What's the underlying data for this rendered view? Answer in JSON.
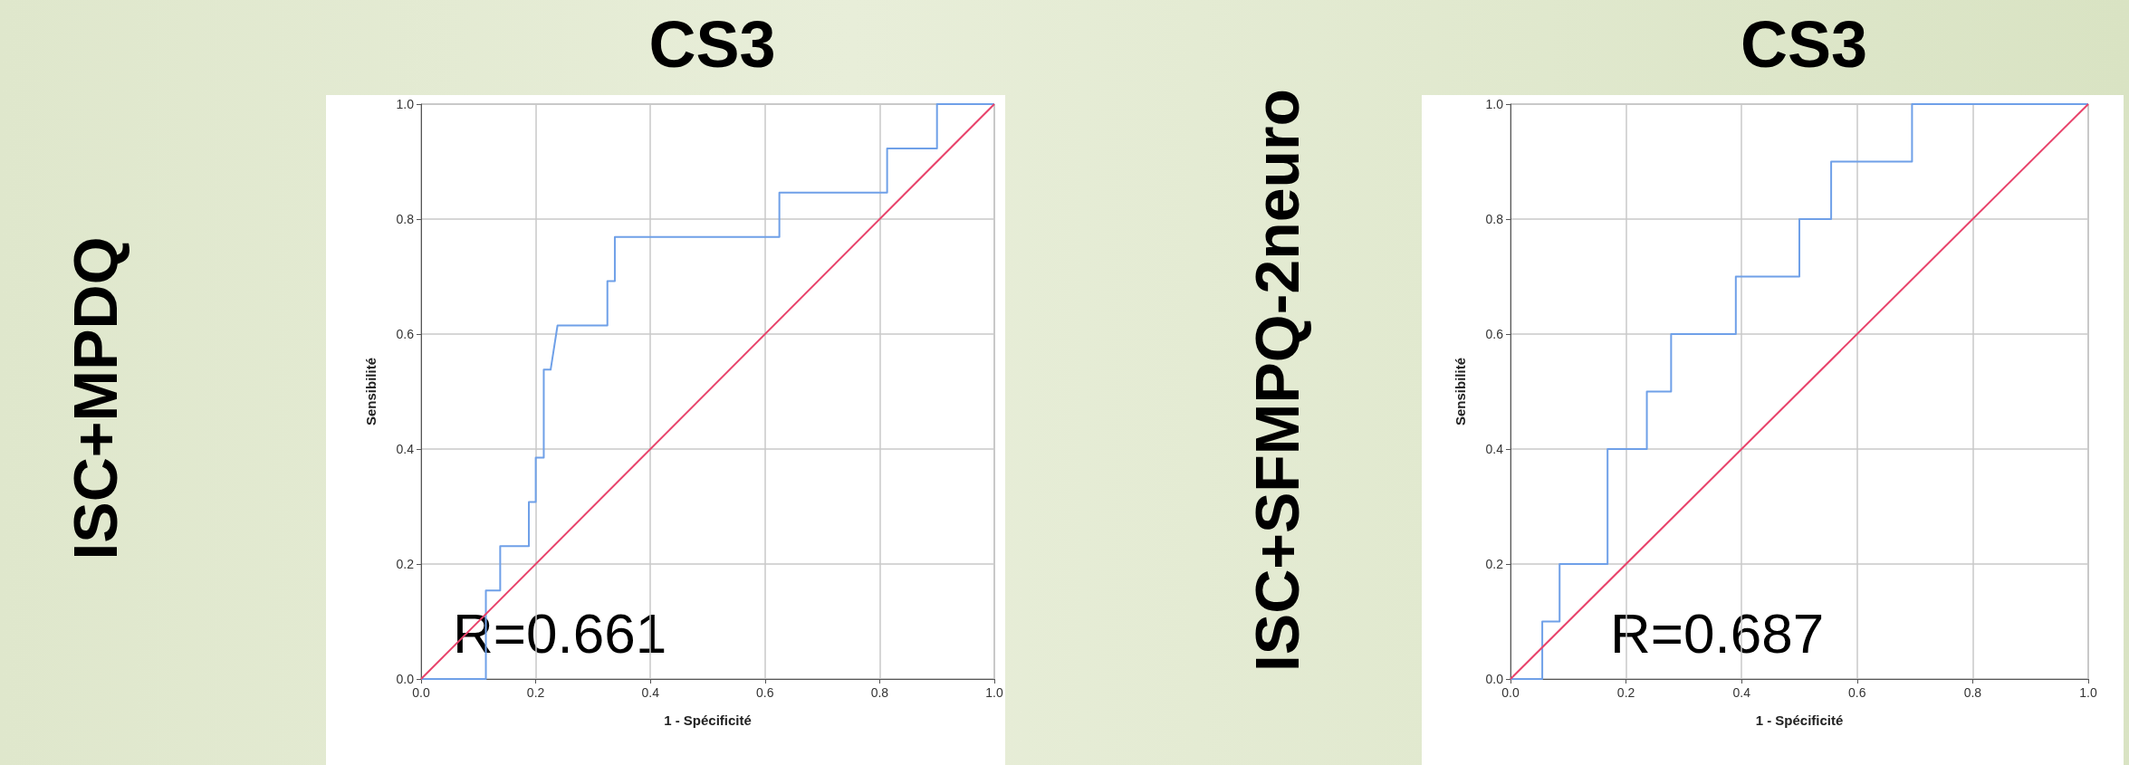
{
  "chart_data": [
    {
      "type": "line",
      "title": "CS3",
      "subtitle": "ISC+MPDQ",
      "xlabel": "1 - Spécificité",
      "ylabel": "Sensibilité",
      "annotations": [
        "R=0.661"
      ],
      "xlim": [
        0,
        1
      ],
      "ylim": [
        0,
        1
      ],
      "xticks": [
        {
          "value": 0,
          "label": "0.0"
        },
        {
          "value": 0.2,
          "label": "0.2"
        },
        {
          "value": 0.4,
          "label": "0.4"
        },
        {
          "value": 0.6,
          "label": "0.6"
        },
        {
          "value": 0.8,
          "label": "0.8"
        },
        {
          "value": 1,
          "label": "1.0"
        }
      ],
      "yticks": [
        {
          "value": 0,
          "label": "0.0"
        },
        {
          "value": 0.2,
          "label": "0.2"
        },
        {
          "value": 0.4,
          "label": "0.4"
        },
        {
          "value": 0.6,
          "label": "0.6"
        },
        {
          "value": 0.8,
          "label": "0.8"
        },
        {
          "value": 1,
          "label": "1.0"
        }
      ],
      "grid": true,
      "marker": "none",
      "series": [
        {
          "color": "#6fa0e8",
          "x": [
            0,
            0.113,
            0.113,
            0.138,
            0.138,
            0.188,
            0.188,
            0.2,
            0.2,
            0.214,
            0.214,
            0.226,
            0.238,
            0.325,
            0.325,
            0.338,
            0.338,
            0.625,
            0.625,
            0.813,
            0.813,
            0.9,
            0.9,
            1
          ],
          "values": [
            0,
            0,
            0.154,
            0.154,
            0.231,
            0.231,
            0.308,
            0.308,
            0.385,
            0.385,
            0.538,
            0.538,
            0.615,
            0.615,
            0.692,
            0.692,
            0.769,
            0.769,
            0.846,
            0.846,
            0.923,
            0.923,
            1,
            1
          ]
        },
        {
          "color": "#e8436b",
          "x": [
            0,
            1
          ],
          "values": [
            0,
            1
          ]
        }
      ]
    },
    {
      "type": "line",
      "title": "CS3",
      "subtitle": "ISC+SFMPQ-2neuro",
      "xlabel": "1 - Spécificité",
      "ylabel": "Sensibilité",
      "annotations": [
        "R=0.687"
      ],
      "xlim": [
        0,
        1
      ],
      "ylim": [
        0,
        1
      ],
      "xticks": [
        {
          "value": 0,
          "label": "0.0"
        },
        {
          "value": 0.2,
          "label": "0.2"
        },
        {
          "value": 0.4,
          "label": "0.4"
        },
        {
          "value": 0.6,
          "label": "0.6"
        },
        {
          "value": 0.8,
          "label": "0.8"
        },
        {
          "value": 1,
          "label": "1.0"
        }
      ],
      "yticks": [
        {
          "value": 0,
          "label": "0.0"
        },
        {
          "value": 0.2,
          "label": "0.2"
        },
        {
          "value": 0.4,
          "label": "0.4"
        },
        {
          "value": 0.6,
          "label": "0.6"
        },
        {
          "value": 0.8,
          "label": "0.8"
        },
        {
          "value": 1,
          "label": "1.0"
        }
      ],
      "grid": true,
      "marker": "none",
      "series": [
        {
          "color": "#6fa0e8",
          "x": [
            0,
            0.055,
            0.055,
            0.085,
            0.085,
            0.168,
            0.168,
            0.236,
            0.236,
            0.278,
            0.278,
            0.39,
            0.39,
            0.5,
            0.5,
            0.555,
            0.555,
            0.695,
            0.695,
            1
          ],
          "values": [
            0,
            0,
            0.1,
            0.1,
            0.2,
            0.2,
            0.4,
            0.4,
            0.5,
            0.5,
            0.6,
            0.6,
            0.7,
            0.7,
            0.8,
            0.8,
            0.9,
            0.9,
            1,
            1
          ]
        },
        {
          "color": "#e8436b",
          "x": [
            0,
            1
          ],
          "values": [
            0,
            1
          ]
        }
      ]
    }
  ]
}
